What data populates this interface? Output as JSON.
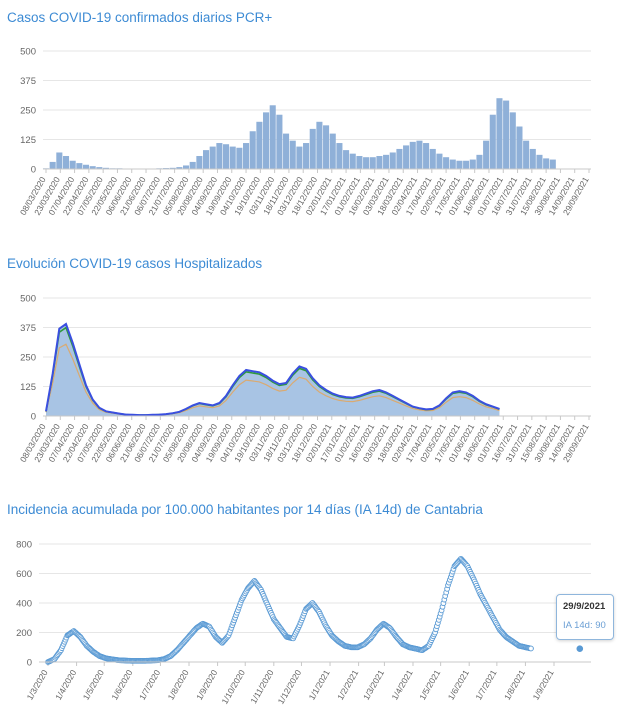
{
  "charts": {
    "cases_title": "Casos COVID-19 confirmados diarios PCR+",
    "hosp_title": "Evolución COVID-19 casos  Hospitalizados",
    "ia_title": "Incidencia acumulada por 100.000 habitantes por 14 días (IA 14d) de Cantabria"
  },
  "tooltip": {
    "date": "29/9/2021",
    "label": "IA 14d: 90"
  },
  "colors": {
    "title": "#3d8bd4",
    "bars": "#8fb0d8",
    "hosp_blue": "#3a4fe0",
    "hosp_green": "#2e9a3a",
    "hosp_orange": "#f0a040",
    "hosp_fill": "#a8c4e4",
    "ia_point": "#5a9ad4",
    "grid": "#e6e6e6",
    "axis_text": "#666666"
  },
  "chart_data": [
    {
      "type": "bar",
      "title": "Casos COVID-19 confirmados diarios PCR+",
      "ylim": [
        0,
        500
      ],
      "y_ticks": [
        0,
        125,
        250,
        375,
        500
      ],
      "x_ticks": [
        "08/03/2020",
        "23/03/2020",
        "07/04/2020",
        "22/04/2020",
        "07/05/2020",
        "22/05/2020",
        "06/06/2020",
        "21/06/2020",
        "06/07/2020",
        "21/07/2020",
        "05/08/2020",
        "20/08/2020",
        "04/09/2020",
        "19/09/2020",
        "04/10/2020",
        "19/10/2020",
        "03/11/2020",
        "18/11/2020",
        "03/12/2020",
        "18/12/2020",
        "02/01/2021",
        "17/01/2021",
        "01/02/2021",
        "16/02/2021",
        "03/03/2021",
        "18/03/2021",
        "02/04/2021",
        "17/04/2021",
        "02/05/2021",
        "17/05/2021",
        "01/06/2021",
        "16/06/2021",
        "01/07/2021",
        "16/07/2021",
        "31/07/2021",
        "15/08/2021",
        "30/08/2021",
        "14/09/2021",
        "29/09/2021"
      ],
      "series": [
        {
          "x_start": "2020-03-08",
          "step_days": 7,
          "values": [
            3,
            30,
            70,
            55,
            35,
            25,
            18,
            12,
            8,
            5,
            3,
            3,
            2,
            2,
            2,
            2,
            2,
            3,
            4,
            5,
            8,
            15,
            30,
            55,
            80,
            95,
            110,
            105,
            95,
            90,
            110,
            160,
            200,
            240,
            270,
            230,
            150,
            120,
            95,
            110,
            170,
            200,
            185,
            150,
            110,
            80,
            65,
            55,
            50,
            50,
            55,
            60,
            70,
            85,
            100,
            115,
            120,
            110,
            85,
            65,
            50,
            40,
            35,
            35,
            40,
            60,
            120,
            230,
            300,
            290,
            240,
            180,
            120,
            85,
            60,
            45,
            40
          ]
        }
      ]
    },
    {
      "type": "area",
      "title": "Evolución COVID-19 casos  Hospitalizados",
      "ylim": [
        0,
        500
      ],
      "y_ticks": [
        0,
        125,
        250,
        375,
        500
      ],
      "x_ticks": [
        "08/03/2020",
        "23/03/2020",
        "07/04/2020",
        "22/04/2020",
        "07/05/2020",
        "22/05/2020",
        "06/06/2020",
        "21/06/2020",
        "06/07/2020",
        "21/07/2020",
        "05/08/2020",
        "20/08/2020",
        "04/09/2020",
        "19/09/2020",
        "04/10/2020",
        "19/10/2020",
        "03/11/2020",
        "18/11/2020",
        "03/12/2020",
        "18/12/2020",
        "02/01/2021",
        "17/01/2021",
        "01/02/2021",
        "16/02/2021",
        "03/03/2021",
        "18/03/2021",
        "02/04/2021",
        "17/04/2021",
        "02/05/2021",
        "17/05/2021",
        "01/06/2021",
        "16/06/2021",
        "01/07/2021",
        "16/07/2021",
        "31/07/2021",
        "15/08/2021",
        "30/08/2021",
        "14/09/2021",
        "29/09/2021"
      ],
      "series": [
        {
          "name": "",
          "x_start": "2020-03-08",
          "step_days": 7,
          "values": [
            20,
            180,
            370,
            390,
            310,
            220,
            130,
            70,
            35,
            20,
            15,
            10,
            6,
            5,
            4,
            4,
            5,
            6,
            8,
            12,
            18,
            30,
            45,
            55,
            50,
            45,
            55,
            85,
            130,
            170,
            195,
            190,
            185,
            170,
            150,
            135,
            140,
            180,
            210,
            200,
            160,
            130,
            110,
            95,
            85,
            80,
            78,
            85,
            95,
            105,
            110,
            100,
            85,
            70,
            55,
            40,
            33,
            28,
            30,
            45,
            75,
            100,
            105,
            100,
            85,
            65,
            50,
            40,
            30
          ]
        }
      ]
    },
    {
      "type": "scatter",
      "title": "Incidencia acumulada por 100.000 habitantes por 14 días (IA 14d) de Cantabria",
      "ylim": [
        0,
        800
      ],
      "y_ticks": [
        0,
        200,
        400,
        600,
        800
      ],
      "x_ticks": [
        "1/3/2020",
        "1/4/2020",
        "1/5/2020",
        "1/6/2020",
        "1/7/2020",
        "1/8/2020",
        "1/9/2020",
        "1/10/2020",
        "1/11/2020",
        "1/12/2020",
        "1/1/2021",
        "1/2/2021",
        "1/3/2021",
        "1/4/2021",
        "1/5/2021",
        "1/6/2021",
        "1/7/2021",
        "1/8/2021",
        "1/9/2021"
      ],
      "series": [
        {
          "name": "IA 14d",
          "x_start": "2020-03-01",
          "step_days": 7,
          "values": [
            0,
            20,
            80,
            180,
            210,
            170,
            110,
            70,
            40,
            25,
            18,
            12,
            10,
            8,
            8,
            8,
            10,
            12,
            20,
            40,
            80,
            130,
            180,
            230,
            260,
            240,
            170,
            130,
            180,
            300,
            420,
            500,
            550,
            490,
            390,
            290,
            230,
            170,
            160,
            250,
            360,
            400,
            340,
            250,
            180,
            140,
            110,
            100,
            100,
            120,
            160,
            220,
            260,
            230,
            170,
            120,
            100,
            90,
            80,
            110,
            200,
            350,
            520,
            650,
            700,
            650,
            560,
            460,
            380,
            300,
            220,
            170,
            140,
            110,
            100,
            90
          ]
        },
        {
          "name": "highlighted",
          "x": [
            "2021-09-29"
          ],
          "values": [
            90
          ]
        }
      ]
    }
  ]
}
